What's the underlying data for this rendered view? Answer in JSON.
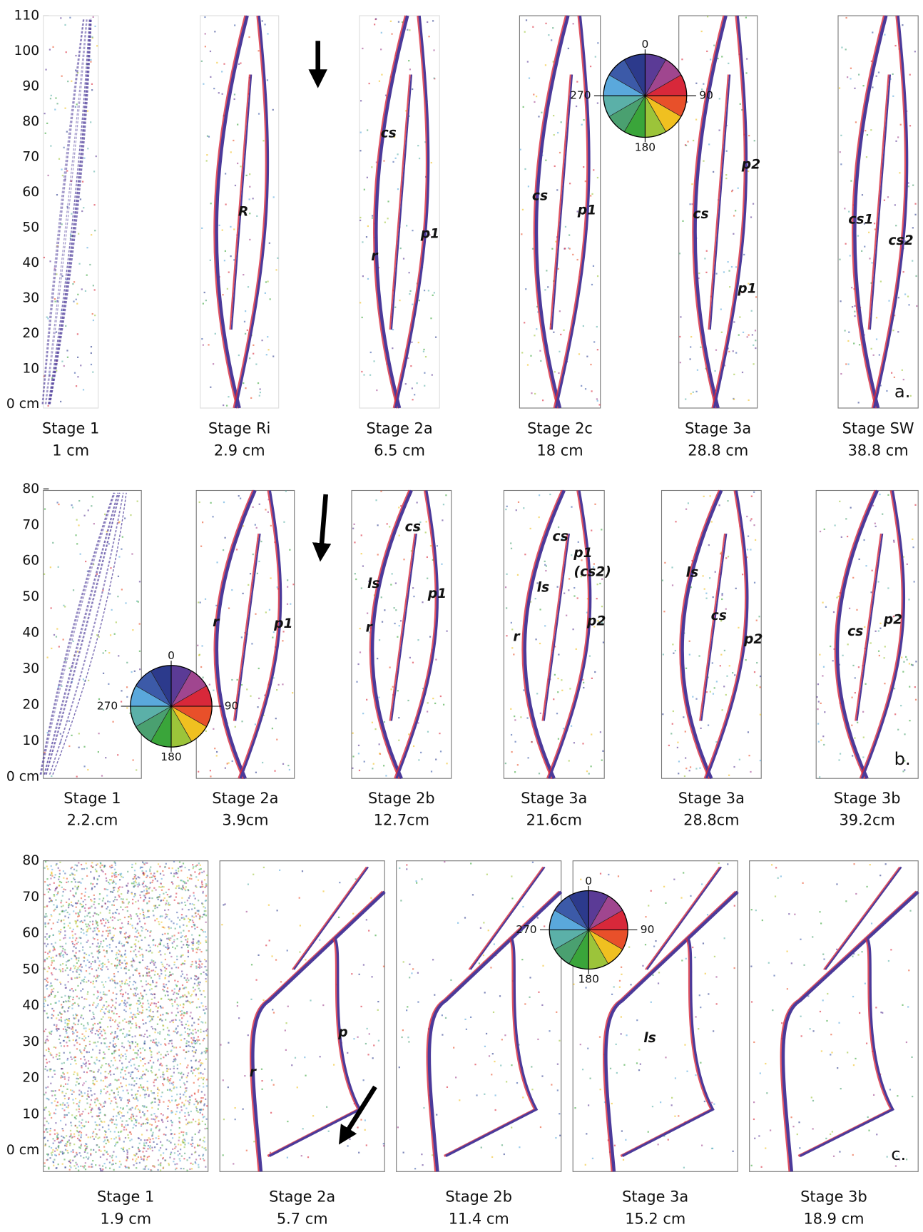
{
  "rows": [
    {
      "label": "a.",
      "yticks": [
        "0 cm",
        "10",
        "20",
        "30",
        "40",
        "50",
        "60",
        "70",
        "80",
        "90",
        "100",
        "110"
      ],
      "wheel": [
        "0",
        "90",
        "180",
        "270"
      ],
      "panels": [
        {
          "stage": "Stage 1",
          "displacement": "1 cm",
          "annotations": []
        },
        {
          "stage": "Stage Ri",
          "displacement": "2.9 cm",
          "annotations": [
            "R"
          ]
        },
        {
          "stage": "Stage 2a",
          "displacement": "6.5 cm",
          "annotations": [
            "cs",
            "r",
            "p1"
          ]
        },
        {
          "stage": "Stage 2c",
          "displacement": "18 cm",
          "annotations": [
            "cs",
            "p1"
          ]
        },
        {
          "stage": "Stage 3a",
          "displacement": "28.8 cm",
          "annotations": [
            "p2",
            "cs",
            "p1"
          ]
        },
        {
          "stage": "Stage SW",
          "displacement": "38.8 cm",
          "annotations": [
            "cs1",
            "cs2"
          ]
        }
      ]
    },
    {
      "label": "b.",
      "yticks": [
        "0 cm",
        "10",
        "20",
        "30",
        "40",
        "50",
        "60",
        "70",
        "80"
      ],
      "wheel": [
        "0",
        "90",
        "180",
        "270"
      ],
      "panels": [
        {
          "stage": "Stage 1",
          "displacement": "2.2.cm",
          "annotations": []
        },
        {
          "stage": "Stage 2a",
          "displacement": "3.9cm",
          "annotations": [
            "r",
            "p1"
          ]
        },
        {
          "stage": "Stage 2b",
          "displacement": "12.7cm",
          "annotations": [
            "cs",
            "ls",
            "p1",
            "r"
          ]
        },
        {
          "stage": "Stage 3a",
          "displacement": "21.6cm",
          "annotations": [
            "cs",
            "p1",
            "(cs2)",
            "ls",
            "p2",
            "r"
          ]
        },
        {
          "stage": "Stage 3a",
          "displacement": "28.8cm",
          "annotations": [
            "ls",
            "cs",
            "p2"
          ]
        },
        {
          "stage": "Stage 3b",
          "displacement": "39.2cm",
          "annotations": [
            "cs",
            "p2"
          ]
        }
      ]
    },
    {
      "label": "c.",
      "yticks": [
        "0 cm",
        "10",
        "20",
        "30",
        "40",
        "50",
        "60",
        "70",
        "80"
      ],
      "wheel": [
        "0",
        "90",
        "180",
        "270"
      ],
      "panels": [
        {
          "stage": "Stage 1",
          "displacement": "1.9 cm",
          "annotations": []
        },
        {
          "stage": "Stage 2a",
          "displacement": "5.7 cm",
          "annotations": [
            "p",
            "r"
          ]
        },
        {
          "stage": "Stage 2b",
          "displacement": "11.4 cm",
          "annotations": []
        },
        {
          "stage": "Stage 3a",
          "displacement": "15.2 cm",
          "annotations": [
            "ls"
          ]
        },
        {
          "stage": "Stage 3b",
          "displacement": "18.9 cm",
          "annotations": []
        }
      ]
    }
  ]
}
